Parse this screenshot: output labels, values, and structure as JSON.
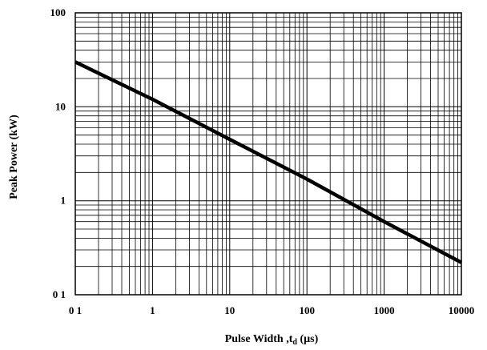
{
  "chart_data": {
    "type": "line",
    "title": "",
    "xlabel": "Pulse Width ,t",
    "xlabel_subscript": "d",
    "xlabel_unit": " (µs)",
    "ylabel": "Peak Power  (kW)",
    "x_scale": "log",
    "y_scale": "log",
    "xlim": [
      0.1,
      10000
    ],
    "ylim": [
      0.1,
      100
    ],
    "grid": true,
    "legend": "none",
    "x_ticks": [
      {
        "value": 0.1,
        "label": "0 1"
      },
      {
        "value": 1,
        "label": "1"
      },
      {
        "value": 10,
        "label": "10"
      },
      {
        "value": 100,
        "label": "100"
      },
      {
        "value": 1000,
        "label": "1000"
      },
      {
        "value": 10000,
        "label": "10000"
      }
    ],
    "y_ticks": [
      {
        "value": 0.1,
        "label": "0 1"
      },
      {
        "value": 1,
        "label": "1"
      },
      {
        "value": 10,
        "label": "10"
      },
      {
        "value": 100,
        "label": "100"
      }
    ],
    "series": [
      {
        "color": "#000000",
        "x": [
          0.1,
          1,
          10,
          100,
          1000,
          10000
        ],
        "y": [
          30,
          12,
          4.5,
          1.7,
          0.6,
          0.22
        ]
      }
    ]
  }
}
